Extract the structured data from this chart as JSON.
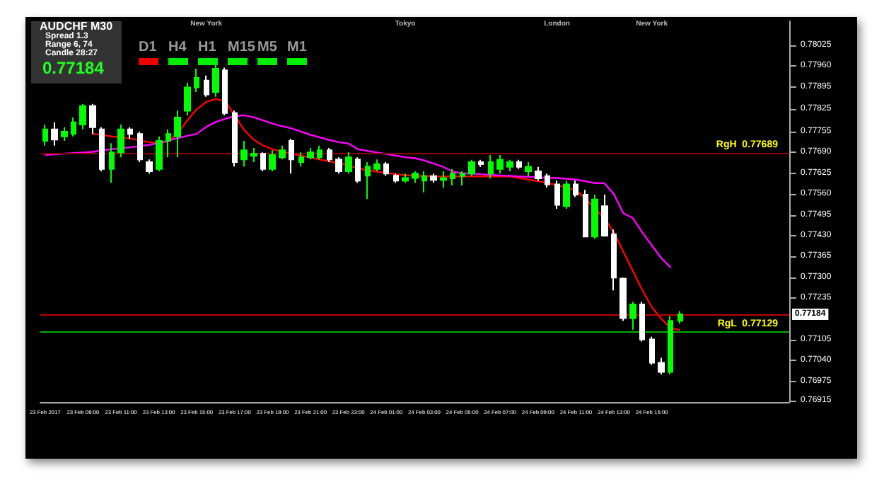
{
  "chart_data": {
    "type": "candlestick",
    "categories": [
      "23 Feb 2017",
      null,
      null,
      null,
      "23 Feb 09:00",
      null,
      null,
      null,
      "23 Feb 11:00",
      null,
      null,
      null,
      "23 Feb 13:00",
      null,
      null,
      null,
      "23 Feb 15:00",
      null,
      null,
      null,
      "23 Feb 17:00",
      null,
      null,
      null,
      "23 Feb 19:00",
      null,
      null,
      null,
      "23 Feb 21:00",
      null,
      null,
      null,
      "23 Feb 23:00",
      null,
      null,
      null,
      "24 Feb 01:00",
      null,
      null,
      null,
      "24 Feb 03:00",
      null,
      null,
      null,
      "24 Feb 05:00",
      null,
      null,
      null,
      "24 Feb 07:00",
      null,
      null,
      null,
      "24 Feb 09:00",
      null,
      null,
      null,
      "24 Feb 11:00",
      null,
      null,
      null,
      "24 Feb 13:00",
      null,
      null,
      null,
      "24 Feb 15:00",
      null,
      null,
      null
    ],
    "ohlc": [
      [
        0.77726,
        0.77777,
        0.77711,
        0.77762
      ],
      [
        0.77762,
        0.77784,
        0.77711,
        0.7773
      ],
      [
        0.7774,
        0.77769,
        0.77726,
        0.77755
      ],
      [
        0.77748,
        0.77799,
        0.7774,
        0.77784
      ],
      [
        0.77777,
        0.77842,
        0.77762,
        0.77835
      ],
      [
        0.77835,
        0.77842,
        0.77748,
        0.77769
      ],
      [
        0.77762,
        0.77769,
        0.77631,
        0.77638
      ],
      [
        0.77638,
        0.77719,
        0.77595,
        0.7769
      ],
      [
        0.7769,
        0.77777,
        0.77675,
        0.77762
      ],
      [
        0.77762,
        0.77769,
        0.77733,
        0.77748
      ],
      [
        0.77748,
        0.77755,
        0.7766,
        0.77668
      ],
      [
        0.7766,
        0.77668,
        0.77624,
        0.77631
      ],
      [
        0.77638,
        0.7774,
        0.77631,
        0.77726
      ],
      [
        0.77726,
        0.77762,
        0.77675,
        0.77748
      ],
      [
        0.7774,
        0.77821,
        0.77675,
        0.77799
      ],
      [
        0.7782,
        0.77908,
        0.77806,
        0.77893
      ],
      [
        0.77893,
        0.77952,
        0.77879,
        0.77923
      ],
      [
        0.77915,
        0.7793,
        0.77864,
        0.77871
      ],
      [
        0.77879,
        0.77974,
        0.77864,
        0.77952
      ],
      [
        0.77947,
        0.77955,
        0.77806,
        0.77813
      ],
      [
        0.77813,
        0.77821,
        0.77646,
        0.7766
      ],
      [
        0.77668,
        0.77726,
        0.77646,
        0.77697
      ],
      [
        0.77679,
        0.77704,
        0.7766,
        0.77686
      ],
      [
        0.77686,
        0.7769,
        0.77631,
        0.77638
      ],
      [
        0.77638,
        0.77697,
        0.77631,
        0.77682
      ],
      [
        0.77675,
        0.77711,
        0.77668,
        0.77697
      ],
      [
        0.77726,
        0.77733,
        0.77624,
        0.77668
      ],
      [
        0.7766,
        0.7769,
        0.77646,
        0.77675
      ],
      [
        0.77675,
        0.77704,
        0.77668,
        0.7769
      ],
      [
        0.77675,
        0.77711,
        0.77668,
        0.77697
      ],
      [
        0.77697,
        0.77704,
        0.7766,
        0.77668
      ],
      [
        0.77668,
        0.77675,
        0.77624,
        0.77631
      ],
      [
        0.77631,
        0.7769,
        0.77624,
        0.77675
      ],
      [
        0.77668,
        0.77675,
        0.77595,
        0.77602
      ],
      [
        0.77617,
        0.7766,
        0.77544,
        0.77646
      ],
      [
        0.77638,
        0.77668,
        0.77631,
        0.77653
      ],
      [
        0.77653,
        0.7766,
        0.77617,
        0.77624
      ],
      [
        0.77617,
        0.77624,
        0.77595,
        0.77602
      ],
      [
        0.77602,
        0.77624,
        0.77595,
        0.7761
      ],
      [
        0.7761,
        0.77631,
        0.77595,
        0.77624
      ],
      [
        0.77602,
        0.77631,
        0.77565,
        0.77616
      ],
      [
        0.77616,
        0.77624,
        0.77595,
        0.77604
      ],
      [
        0.77604,
        0.77631,
        0.7758,
        0.7761
      ],
      [
        0.77609,
        0.77638,
        0.77587,
        0.77624
      ],
      [
        0.77616,
        0.77631,
        0.77587,
        0.77624
      ],
      [
        0.77624,
        0.77667,
        0.77616,
        0.7766
      ],
      [
        0.7766,
        0.77667,
        0.77645,
        0.77653
      ],
      [
        0.77624,
        0.77682,
        0.77609,
        0.7766
      ],
      [
        0.77638,
        0.77682,
        0.77624,
        0.77667
      ],
      [
        0.77645,
        0.77667,
        0.77631,
        0.7766
      ],
      [
        0.7766,
        0.77667,
        0.77638,
        0.77645
      ],
      [
        0.77631,
        0.7766,
        0.77616,
        0.77645
      ],
      [
        0.77631,
        0.77645,
        0.77602,
        0.77609
      ],
      [
        0.77616,
        0.77624,
        0.7758,
        0.7759
      ],
      [
        0.7759,
        0.77602,
        0.77514,
        0.77526
      ],
      [
        0.77522,
        0.77602,
        0.77514,
        0.7759
      ],
      [
        0.7759,
        0.77602,
        0.77551,
        0.77558
      ],
      [
        0.77558,
        0.77573,
        0.77427,
        0.77427
      ],
      [
        0.77427,
        0.77558,
        0.7742,
        0.77543
      ],
      [
        0.77522,
        0.77558,
        0.77427,
        0.7743
      ],
      [
        0.77434,
        0.77449,
        0.77259,
        0.77299
      ],
      [
        0.77296,
        0.77299,
        0.77164,
        0.77172
      ],
      [
        0.77172,
        0.77223,
        0.77136,
        0.77215
      ],
      [
        0.77215,
        0.77223,
        0.77099,
        0.77106
      ],
      [
        0.77106,
        0.77114,
        0.77026,
        0.77033
      ],
      [
        0.77033,
        0.77048,
        0.76997,
        0.77004
      ],
      [
        0.77004,
        0.77179,
        0.76997,
        0.77164
      ],
      [
        0.77164,
        0.77194,
        0.77155,
        0.77184
      ]
    ],
    "colors": [
      "#00ff00",
      "#ffffff",
      "#00ff00",
      "#00ff00",
      "#00ff00",
      "#ffffff",
      "#ffffff",
      "#00ff00",
      "#00ff00",
      "#ffffff",
      "#ffffff",
      "#ffffff",
      "#00ff00",
      "#00ff00",
      "#00ff00",
      "#00ff00",
      "#00ff00",
      "#ffffff",
      "#00ff00",
      "#ffffff",
      "#ffffff",
      "#00ff00",
      "#00ff00",
      "#ffffff",
      "#00ff00",
      "#00ff00",
      "#ffffff",
      "#00ff00",
      "#00ff00",
      "#00ff00",
      "#ffffff",
      "#ffffff",
      "#00ff00",
      "#ffffff",
      "#00ff00",
      "#00ff00",
      "#ffffff",
      "#ffffff",
      "#00ff00",
      "#00ff00",
      "#00ff00",
      "#ffffff",
      "#00ff00",
      "#00ff00",
      "#00ff00",
      "#00ff00",
      "#ffffff",
      "#00ff00",
      "#00ff00",
      "#00ff00",
      "#ffffff",
      "#00ff00",
      "#ffffff",
      "#ffffff",
      "#ffffff",
      "#00ff00",
      "#ffffff",
      "#ffffff",
      "#00ff00",
      "#ffffff",
      "#ffffff",
      "#ffffff",
      "#00ff00",
      "#ffffff",
      "#ffffff",
      "#ffffff",
      "#00ff00",
      "#00ff00"
    ],
    "series": [
      {
        "type": "line",
        "color": "#ff0000",
        "values": [
          null,
          null,
          null,
          null,
          null,
          0.77748,
          0.77745,
          0.7774,
          0.77737,
          0.77733,
          0.77728,
          0.77722,
          0.77719,
          0.77725,
          0.7775,
          0.7779,
          0.77825,
          0.77848,
          0.77857,
          0.7785,
          0.77805,
          0.7776,
          0.7773,
          0.77712,
          0.777,
          0.77692,
          0.77686,
          0.7768,
          0.77674,
          0.77668,
          0.77662,
          0.77656,
          0.7765,
          0.7764,
          0.77635,
          0.7763,
          0.77626,
          0.77622,
          0.77619,
          0.77617,
          0.77616,
          0.77615,
          0.77615,
          0.77615,
          0.77615,
          0.77615,
          0.77615,
          0.77615,
          0.77615,
          0.77615,
          0.7761,
          0.77605,
          0.776,
          0.77595,
          0.77588,
          0.7758,
          0.77572,
          0.77545,
          0.77515,
          0.77485,
          0.7744,
          0.7738,
          0.7732,
          0.7726,
          0.77207,
          0.7717,
          0.77141,
          0.77135
        ]
      },
      {
        "type": "line",
        "color": "#ff00ff",
        "values": [
          0.77682,
          0.77684,
          0.77686,
          0.77688,
          0.7769,
          0.77692,
          0.77697,
          0.777,
          0.77703,
          0.77706,
          0.7771,
          0.77714,
          0.77719,
          0.77727,
          0.77735,
          0.77742,
          0.77748,
          0.7777,
          0.77785,
          0.77795,
          0.77803,
          0.77806,
          0.778,
          0.7779,
          0.7778,
          0.77772,
          0.77765,
          0.77755,
          0.77745,
          0.77737,
          0.77729,
          0.77722,
          0.77718,
          0.777,
          0.77695,
          0.7769,
          0.77685,
          0.7768,
          0.77675,
          0.77672,
          0.77665,
          0.77655,
          0.77645,
          0.7763,
          0.77625,
          0.77624,
          0.77622,
          0.7762,
          0.77618,
          0.77617,
          0.77615,
          0.77614,
          0.77612,
          0.77611,
          0.7761,
          0.77608,
          0.77605,
          0.776,
          0.77594,
          0.77594,
          0.7756,
          0.775,
          0.77485,
          0.7744,
          0.774,
          0.7736,
          0.7733,
          null
        ]
      }
    ],
    "ylim": [
      0.7691,
      0.781
    ],
    "yticks": [
      {
        "value": 0.78025,
        "label": "0.78025"
      },
      {
        "value": 0.7796,
        "label": "0.77960"
      },
      {
        "value": 0.77895,
        "label": "0.77895"
      },
      {
        "value": 0.77825,
        "label": "0.77825"
      },
      {
        "value": 0.77755,
        "label": "0.77755"
      },
      {
        "value": 0.7769,
        "label": "0.77690"
      },
      {
        "value": 0.77625,
        "label": "0.77625"
      },
      {
        "value": 0.7756,
        "label": "0.77560"
      },
      {
        "value": 0.77495,
        "label": "0.77495"
      },
      {
        "value": 0.7743,
        "label": "0.77430"
      },
      {
        "value": 0.77365,
        "label": "0.77365"
      },
      {
        "value": 0.773,
        "label": "0.77300"
      },
      {
        "value": 0.77235,
        "label": "0.77235"
      },
      {
        "value": 0.77105,
        "label": "0.77105"
      },
      {
        "value": 0.7704,
        "label": "0.77040"
      },
      {
        "value": 0.76975,
        "label": "0.76975"
      },
      {
        "value": 0.76915,
        "label": "0.76915"
      }
    ],
    "ref_lines": [
      {
        "axis": "y",
        "value": 0.77689,
        "label": "RgH  0.77689",
        "color": "#8b0000"
      },
      {
        "axis": "y",
        "value": 0.77129,
        "label": "RgL  0.77129",
        "color": "#00b000"
      },
      {
        "axis": "y",
        "value": 0.77184,
        "label": "0.77184",
        "color": "#c00000"
      }
    ],
    "annotations": [
      "AUDCHF   M30",
      "Spread   1.3",
      "Range   6, 74",
      "Candle   28:27",
      "0.77184",
      "D1",
      "H4",
      "H1",
      "M15",
      "M5",
      "M1",
      "New York",
      "Tokyo",
      "London",
      "New York"
    ]
  }
}
